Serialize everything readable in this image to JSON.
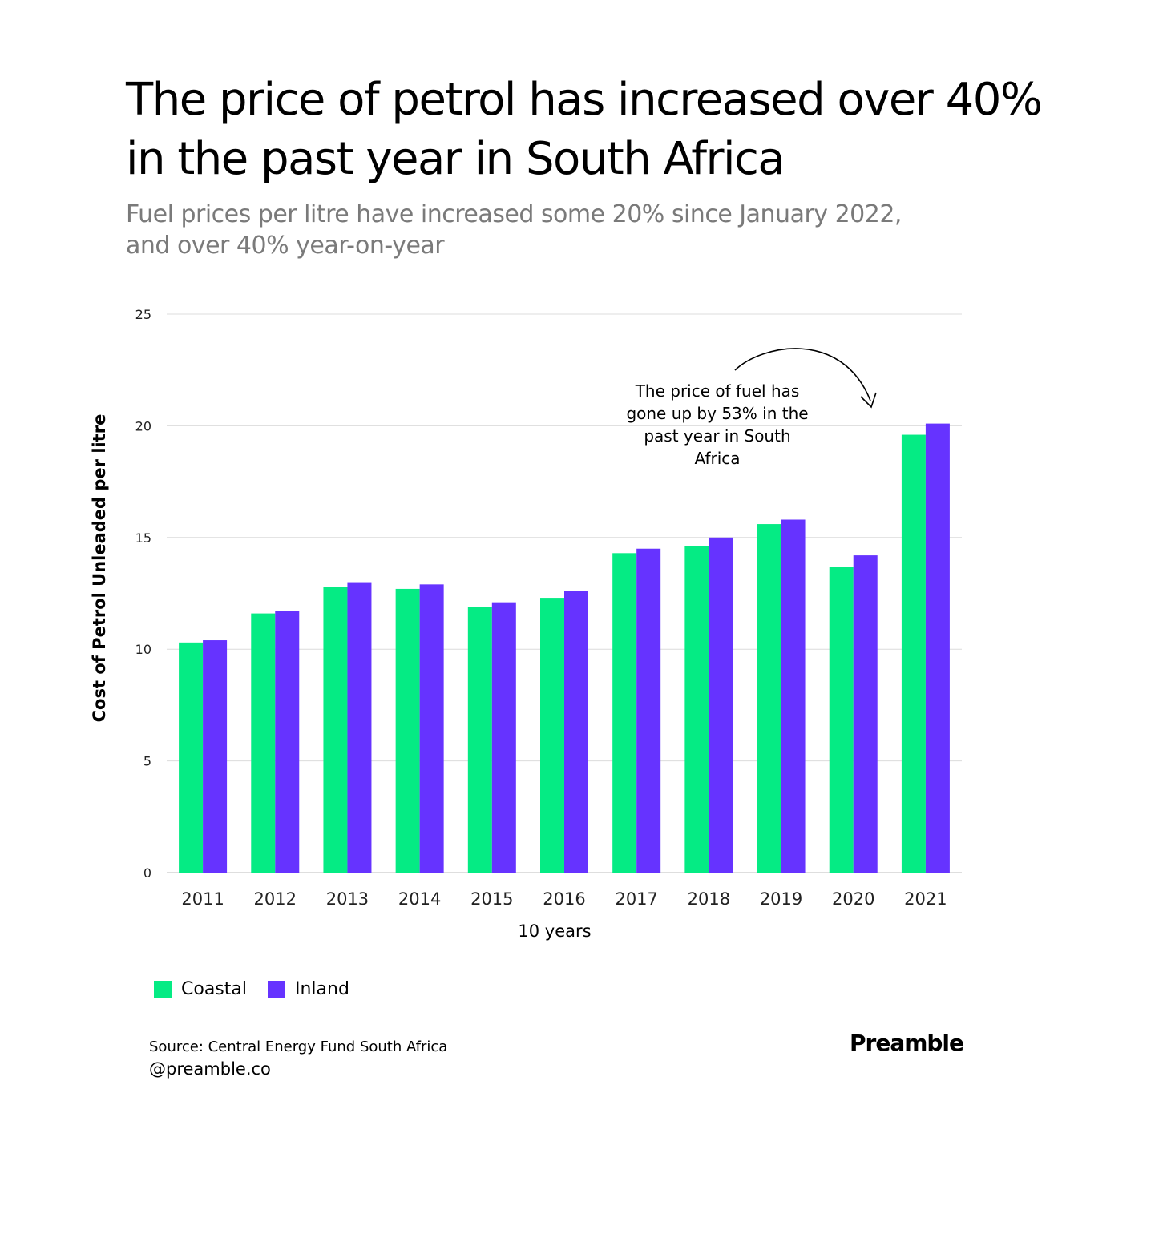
{
  "chart_data": {
    "type": "bar",
    "title": "The price of petrol has increased over 40% in the past year in South Africa",
    "subtitle": "Fuel prices per litre have increased some 20% since January 2022, and over 40% year-on-year",
    "xlabel": "10 years",
    "ylabel": "Cost of Petrol Unleaded per litre",
    "ylim": [
      0,
      25
    ],
    "yticks": [
      0,
      5,
      10,
      15,
      20,
      25
    ],
    "grid": true,
    "legend_position": "bottom-left",
    "categories": [
      "2011",
      "2012",
      "2013",
      "2014",
      "2015",
      "2016",
      "2017",
      "2018",
      "2019",
      "2020",
      "2021"
    ],
    "series": [
      {
        "name": "Coastal",
        "color": "#05EB84",
        "values": [
          10.3,
          11.6,
          12.8,
          12.7,
          11.9,
          12.3,
          14.3,
          14.6,
          15.6,
          13.7,
          19.6
        ]
      },
      {
        "name": "Inland",
        "color": "#6633FF",
        "values": [
          10.4,
          11.7,
          13.0,
          12.9,
          12.1,
          12.6,
          14.5,
          15.0,
          15.8,
          14.2,
          20.1
        ]
      }
    ],
    "annotation": {
      "lines": [
        "The price of fuel has",
        "gone up by 53% in the",
        "past year in South",
        "Africa"
      ]
    }
  },
  "footer": {
    "source": "Source: Central Energy Fund South Africa",
    "handle": "@preamble.co",
    "brand": "Preamble"
  }
}
